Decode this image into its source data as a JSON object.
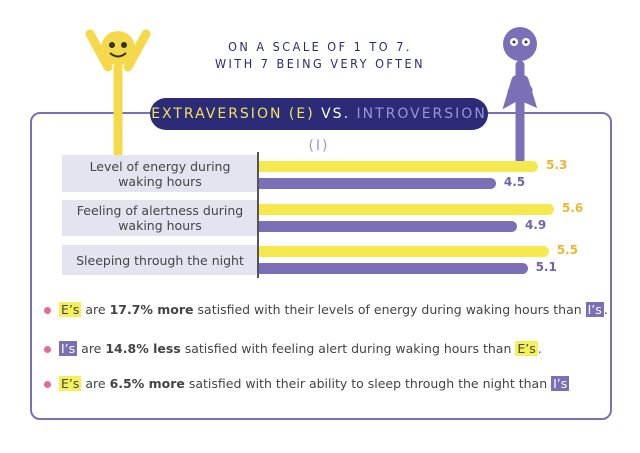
{
  "subtitle_lines": [
    "ON A SCALE OF 1 TO 7.",
    "WITH 7 BEING VERY OFTEN"
  ],
  "title": {
    "e": "EXTRAVERSION (E)",
    "vs": "VS.",
    "i": "INTROVERSION (I)"
  },
  "colors": {
    "extravert": "#f5e94f",
    "introvert": "#7b6fb8",
    "title_bg": "#2b2b78",
    "frame": "#7b6fb8",
    "bullet": "#e46a9a"
  },
  "chart_data": {
    "type": "bar",
    "orientation": "horizontal",
    "xlim": [
      0,
      7
    ],
    "categories": [
      [
        "Level of energy during",
        "waking hours"
      ],
      [
        "Feeling of alertness during",
        "waking hours"
      ],
      [
        "Sleeping through the night"
      ]
    ],
    "series": [
      {
        "name": "Extraversion (E)",
        "color": "#f5e94f",
        "values": [
          5.3,
          5.6,
          5.5
        ]
      },
      {
        "name": "Introversion (I)",
        "color": "#7b6fb8",
        "values": [
          4.5,
          4.9,
          5.1
        ]
      }
    ]
  },
  "notes": [
    {
      "a": "E’s",
      "b": " are ",
      "c": "17.7% more",
      "d": " satisfied with their levels of energy during waking hours than ",
      "e": "I’s",
      "f": "."
    },
    {
      "a": "I’s",
      "b": " are ",
      "c": "14.8% less",
      "d": " satisfied with feeling alert during waking hours than ",
      "e": "E’s",
      "f": "."
    },
    {
      "a": "E’s",
      "b": " are ",
      "c": "6.5% more",
      "d": " satisfied with their ability to sleep through the night than ",
      "e": "I’s",
      "f": ""
    }
  ]
}
